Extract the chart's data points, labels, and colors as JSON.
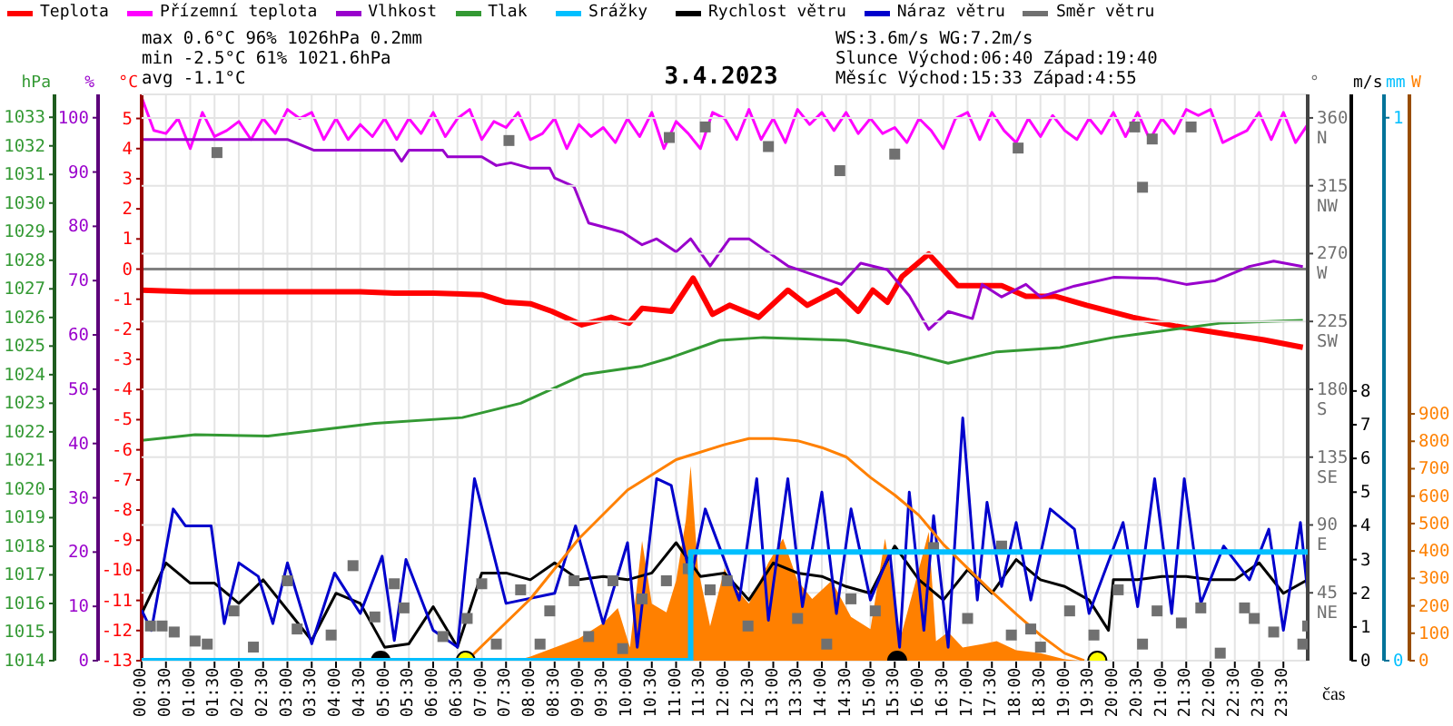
{
  "chart_data": [
    {
      "type": "line",
      "title": "3.4.2023",
      "xlabel": "čas",
      "ylabel": "°C",
      "y2label": "hPa",
      "y3label": "%",
      "annotations": [
        "max 0.6°C 96% 1026hPa 0.2mm",
        "min -2.5°C 61% 1021.6hPa",
        "avg -1.1°C",
        "WS:3.6m/s WG:7.2m/s",
        "Slunce Východ:06:40 Západ:19:40",
        "Měsíc Východ:15:33 Západ:4:55"
      ],
      "legend": "top",
      "grid": "x",
      "marker": "none",
      "xlim": [
        0,
        24
      ],
      "xticks": [
        {
          "value": 0,
          "label": "00:00"
        },
        {
          "value": 0.5,
          "label": "00:30"
        },
        {
          "value": 1,
          "label": "01:00"
        },
        {
          "value": 1.5,
          "label": "01:30"
        },
        {
          "value": 2,
          "label": "02:00"
        },
        {
          "value": 2.5,
          "label": "02:30"
        },
        {
          "value": 3,
          "label": "03:00"
        },
        {
          "value": 3.5,
          "label": "03:30"
        },
        {
          "value": 4,
          "label": "04:00"
        },
        {
          "value": 4.5,
          "label": "04:30"
        },
        {
          "value": 5,
          "label": "05:00"
        },
        {
          "value": 5.5,
          "label": "05:30"
        },
        {
          "value": 6,
          "label": "06:00"
        },
        {
          "value": 6.5,
          "label": "06:30"
        },
        {
          "value": 7,
          "label": "07:00"
        },
        {
          "value": 7.5,
          "label": "07:30"
        },
        {
          "value": 8,
          "label": "08:00"
        },
        {
          "value": 8.5,
          "label": "08:30"
        },
        {
          "value": 9,
          "label": "09:00"
        },
        {
          "value": 9.5,
          "label": "09:30"
        },
        {
          "value": 10,
          "label": "10:00"
        },
        {
          "value": 10.5,
          "label": "10:30"
        },
        {
          "value": 11,
          "label": "11:00"
        },
        {
          "value": 11.5,
          "label": "11:30"
        },
        {
          "value": 12,
          "label": "12:00"
        },
        {
          "value": 12.5,
          "label": "12:30"
        },
        {
          "value": 13,
          "label": "13:00"
        },
        {
          "value": 13.5,
          "label": "13:30"
        },
        {
          "value": 14,
          "label": "14:00"
        },
        {
          "value": 14.5,
          "label": "14:30"
        },
        {
          "value": 15,
          "label": "15:00"
        },
        {
          "value": 15.5,
          "label": "15:30"
        },
        {
          "value": 16,
          "label": "16:00"
        },
        {
          "value": 16.5,
          "label": "16:30"
        },
        {
          "value": 17,
          "label": "17:00"
        },
        {
          "value": 17.5,
          "label": "17:30"
        },
        {
          "value": 18,
          "label": "18:00"
        },
        {
          "value": 18.5,
          "label": "18:30"
        },
        {
          "value": 19,
          "label": "19:00"
        },
        {
          "value": 19.5,
          "label": "19:30"
        },
        {
          "value": 20,
          "label": "20:00"
        },
        {
          "value": 20.5,
          "label": "20:30"
        },
        {
          "value": 21,
          "label": "21:00"
        },
        {
          "value": 21.5,
          "label": "21:30"
        },
        {
          "value": 22,
          "label": "22:00"
        },
        {
          "value": 22.5,
          "label": "22:30"
        },
        {
          "value": 23,
          "label": "23:00"
        },
        {
          "value": 23.5,
          "label": "23:30"
        }
      ],
      "ylim": [
        -13,
        5.8
      ],
      "yticks": [
        -13,
        -12,
        -11,
        -10,
        -9,
        -8,
        -7,
        -6,
        -5,
        -4,
        -3,
        -2,
        -1,
        0,
        1,
        2,
        3,
        4,
        5
      ],
      "y2lim": [
        1014,
        1033.8
      ],
      "y2ticks": [
        1014,
        1015,
        1016,
        1017,
        1018,
        1019,
        1020,
        1021,
        1022,
        1023,
        1024,
        1025,
        1026,
        1027,
        1028,
        1029,
        1030,
        1031,
        1032,
        1033
      ],
      "y3lim": [
        0,
        104.3
      ],
      "y3ticks": [
        0,
        10,
        20,
        30,
        40,
        50,
        60,
        70,
        80,
        90,
        100
      ],
      "ref_lines": [
        {
          "axis": "y",
          "value": 0,
          "color": "#808080"
        }
      ],
      "series": [
        {
          "name": "Teplota",
          "color": "#ff0000",
          "x": [
            0,
            1,
            2,
            3,
            4,
            4.5,
            5.2,
            6,
            7,
            7.5,
            8,
            8.44,
            9.06,
            9.66,
            10.03,
            10.3,
            10.9,
            11.35,
            11.75,
            12.1,
            12.7,
            13.3,
            13.7,
            14.3,
            14.75,
            15.05,
            15.35,
            15.65,
            16.2,
            16.8,
            17.25,
            17.7,
            18.2,
            18.8,
            19.45,
            20.4,
            21.3,
            22.1,
            23.1,
            23.9
          ],
          "values": [
            -0.7,
            -0.75,
            -0.75,
            -0.75,
            -0.75,
            -0.75,
            -0.8,
            -0.8,
            -0.85,
            -1.1,
            -1.15,
            -1.4,
            -1.85,
            -1.6,
            -1.8,
            -1.3,
            -1.4,
            -0.3,
            -1.5,
            -1.2,
            -1.6,
            -0.7,
            -1.2,
            -0.7,
            -1.4,
            -0.7,
            -1.1,
            -0.25,
            0.5,
            -0.55,
            -0.55,
            -0.55,
            -0.9,
            -0.9,
            -1.2,
            -1.6,
            -1.9,
            -2.1,
            -2.35,
            -2.6
          ]
        },
        {
          "name": "Přízemní teplota",
          "color": "#ff00ff",
          "x": [
            0,
            0.25,
            0.5,
            0.75,
            1,
            1.25,
            1.5,
            1.75,
            2,
            2.25,
            2.5,
            2.75,
            3,
            3.25,
            3.5,
            3.75,
            4,
            4.25,
            4.5,
            4.75,
            5,
            5.25,
            5.5,
            5.75,
            6,
            6.25,
            6.5,
            6.75,
            7,
            7.25,
            7.5,
            7.75,
            8,
            8.25,
            8.5,
            8.75,
            9,
            9.25,
            9.5,
            9.75,
            10,
            10.25,
            10.5,
            10.75,
            11,
            11.25,
            11.5,
            11.75,
            12,
            12.25,
            12.5,
            12.75,
            13,
            13.25,
            13.5,
            13.75,
            14,
            14.25,
            14.5,
            14.75,
            15,
            15.25,
            15.5,
            15.75,
            16,
            16.25,
            16.5,
            16.75,
            17,
            17.25,
            17.5,
            17.75,
            18,
            18.25,
            18.5,
            18.75,
            19,
            19.25,
            19.5,
            19.75,
            20,
            20.25,
            20.5,
            20.75,
            21,
            21.25,
            21.5,
            21.75,
            22,
            22.25,
            22.5,
            22.75,
            23,
            23.25,
            23.5,
            23.75,
            24
          ],
          "values": [
            5.7,
            4.6,
            4.5,
            5.0,
            4.0,
            5.2,
            4.4,
            4.6,
            4.9,
            4.3,
            5.0,
            4.5,
            5.3,
            5.0,
            5.2,
            4.3,
            5.0,
            4.3,
            4.8,
            4.4,
            5.0,
            4.3,
            5.0,
            4.5,
            5.2,
            4.4,
            5.0,
            5.3,
            4.3,
            4.9,
            4.7,
            5.2,
            4.3,
            4.5,
            5.0,
            4.0,
            4.8,
            4.4,
            4.7,
            4.2,
            5.0,
            4.4,
            5.2,
            4.0,
            4.9,
            4.5,
            4.0,
            5.2,
            5.0,
            4.3,
            5.3,
            4.3,
            5.0,
            4.2,
            5.3,
            4.8,
            5.2,
            4.6,
            5.2,
            4.5,
            5.0,
            4.5,
            4.7,
            4.2,
            5.0,
            4.6,
            4.0,
            5.0,
            5.2,
            4.3,
            5.2,
            4.6,
            4.2,
            5.0,
            4.4,
            5.1,
            4.6,
            4.3,
            5.0,
            4.5,
            5.2,
            4.4,
            5.2,
            4.3,
            5.0,
            4.5,
            5.3,
            5.1,
            5.3,
            4.2,
            4.4,
            4.6,
            5.2,
            4.3,
            5.2,
            4.2,
            4.8
          ]
        },
        {
          "name": "Vlhkost",
          "color": "#9900cc",
          "axis": "y3",
          "x": [
            0,
            1,
            2,
            3,
            3.55,
            4.5,
            5.2,
            5.35,
            5.5,
            6.2,
            6.3,
            7.0,
            7.3,
            7.6,
            8.0,
            8.4,
            8.5,
            8.9,
            9.2,
            9.5,
            9.9,
            10.3,
            10.6,
            11.0,
            11.3,
            11.7,
            12.1,
            12.5,
            13.3,
            14.4,
            14.8,
            15.35,
            15.8,
            16.2,
            16.6,
            17.1,
            17.3,
            17.7,
            18.2,
            18.5,
            19.2,
            20.0,
            20.9,
            21.5,
            22.1,
            22.8,
            23.3,
            23.9
          ],
          "values": [
            96,
            96,
            96,
            96,
            94,
            94,
            94,
            92,
            94,
            94,
            92.8,
            92.8,
            91.2,
            91.7,
            90.7,
            90.7,
            88.9,
            87.3,
            80.6,
            79.9,
            78.9,
            76.6,
            77.7,
            75.3,
            77.7,
            72.7,
            77.7,
            77.7,
            72.7,
            69.3,
            73.2,
            72,
            67.2,
            61,
            64.3,
            63,
            69.3,
            67,
            69.3,
            67,
            69,
            70.6,
            70.4,
            69.3,
            70,
            72.6,
            73.6,
            72.6
          ]
        },
        {
          "name": "Tlak",
          "color": "#339933",
          "axis": "y2",
          "x": [
            0,
            1.1,
            2.6,
            4.8,
            6.6,
            7.8,
            9.1,
            10.3,
            10.9,
            11.9,
            12.8,
            14.5,
            15.8,
            16.6,
            17.6,
            18.9,
            20.0,
            21.3,
            22.2,
            23.9
          ],
          "values": [
            1021.7,
            1021.9,
            1021.85,
            1022.3,
            1022.5,
            1023.0,
            1024.0,
            1024.3,
            1024.6,
            1025.2,
            1025.3,
            1025.2,
            1024.75,
            1024.4,
            1024.8,
            1024.95,
            1025.3,
            1025.6,
            1025.8,
            1025.9
          ]
        }
      ]
    },
    {
      "type": "line",
      "ylabel": "°",
      "y2label": "m/s",
      "y3label": "W",
      "legend": "top",
      "grid": "y",
      "marker": "none",
      "tick_labels": "y",
      "xlim": [
        0,
        24
      ],
      "ylim": [
        0,
        375.6
      ],
      "yticks": [
        {
          "value": 45,
          "label": "45 NE"
        },
        {
          "value": 90,
          "label": "90 E"
        },
        {
          "value": 135,
          "label": "135 SE"
        },
        {
          "value": 180,
          "label": "180 S"
        },
        {
          "value": 225,
          "label": "225 SW"
        },
        {
          "value": 270,
          "label": "270 W"
        },
        {
          "value": 315,
          "label": "315 NW"
        },
        {
          "value": 360,
          "label": "360 N"
        }
      ],
      "y2lim": [
        0,
        16.8
      ],
      "y2ticks": [
        0,
        1,
        2,
        3,
        4,
        5,
        6,
        7,
        8
      ],
      "y3lim": [
        0,
        2065
      ],
      "y3ticks": [
        0,
        100,
        200,
        300,
        400,
        500,
        600,
        700,
        800,
        900
      ],
      "series": [
        {
          "name": "Rychlost větru",
          "color": "#000000",
          "axis": "y2",
          "x": [
            0,
            0.5,
            1,
            1.5,
            2,
            2.5,
            3,
            3.5,
            4,
            4.5,
            5,
            5.5,
            6,
            6.5,
            7,
            7.5,
            8,
            8.5,
            9,
            9.5,
            10,
            10.5,
            11,
            11.5,
            12,
            12.5,
            13,
            13.5,
            14,
            14.5,
            15,
            15.5,
            16,
            16.5,
            17,
            17.5,
            18,
            18.5,
            19,
            19.5,
            19.9,
            20,
            20.5,
            21,
            21.5,
            22,
            22.5,
            23,
            23.5,
            24
          ],
          "values": [
            1.4,
            2.9,
            2.3,
            2.3,
            1.7,
            2.4,
            1.5,
            0.6,
            2.0,
            1.7,
            0.4,
            0.5,
            1.6,
            0.4,
            2.6,
            2.6,
            2.4,
            2.9,
            2.4,
            2.5,
            2.4,
            2.6,
            3.5,
            2.5,
            2.6,
            1.8,
            2.9,
            2.6,
            2.5,
            2.2,
            2.0,
            3.4,
            2.4,
            1.8,
            2.7,
            2.0,
            3.0,
            2.4,
            2.2,
            1.8,
            0.9,
            2.4,
            2.4,
            2.5,
            2.5,
            2.4,
            2.4,
            2.9,
            2.0,
            2.4
          ]
        },
        {
          "name": "Náraz větru",
          "color": "#0000cc",
          "axis": "y2",
          "x": [
            0,
            0.2,
            0.65,
            0.9,
            1.43,
            1.7,
            2.0,
            2.4,
            2.7,
            3.0,
            3.5,
            3.97,
            4.5,
            4.95,
            5.2,
            5.44,
            6.0,
            6.5,
            6.85,
            7.5,
            8.5,
            8.93,
            9.5,
            10.0,
            10.2,
            10.6,
            10.9,
            11.3,
            11.6,
            12.3,
            12.66,
            12.9,
            13.3,
            13.6,
            14.0,
            14.3,
            14.6,
            15.0,
            15.4,
            15.6,
            15.8,
            16.1,
            16.3,
            16.6,
            16.9,
            17.2,
            17.4,
            17.7,
            18.0,
            18.3,
            18.7,
            19.2,
            19.5,
            20.2,
            20.5,
            20.85,
            21.2,
            21.46,
            21.8,
            22.27,
            22.8,
            23.2,
            23.5,
            23.85,
            24
          ],
          "values": [
            1.5,
            0.9,
            4.5,
            4.0,
            4.0,
            1.1,
            2.9,
            2.5,
            1.1,
            2.9,
            0.5,
            2.6,
            1.4,
            3.1,
            0.6,
            3.0,
            0.9,
            0.4,
            5.4,
            1.7,
            2.0,
            4.0,
            1.1,
            3.5,
            0.4,
            5.4,
            5.2,
            2.4,
            4.5,
            1.8,
            5.4,
            1.2,
            5.4,
            1.6,
            5.0,
            1.4,
            4.5,
            1.8,
            3.2,
            0.4,
            5.0,
            0.9,
            4.3,
            0.4,
            7.2,
            1.8,
            4.7,
            2.2,
            4.1,
            1.8,
            4.5,
            3.9,
            1.4,
            4.1,
            1.6,
            5.4,
            1.4,
            5.4,
            1.7,
            3.4,
            2.4,
            3.9,
            0.9,
            4.1,
            2.0
          ]
        },
        {
          "name": "Směr větru",
          "type": "scatter",
          "marker": "square",
          "color": "#707070",
          "x": [
            0.18,
            0.42,
            0.67,
            1.1,
            1.35,
            1.55,
            1.9,
            2.3,
            3.0,
            3.2,
            3.9,
            4.35,
            4.8,
            5.2,
            5.4,
            6.2,
            6.7,
            7.0,
            7.3,
            7.56,
            7.8,
            8.2,
            8.4,
            8.9,
            9.2,
            9.7,
            9.9,
            10.3,
            10.8,
            10.86,
            11.25,
            11.6,
            11.7,
            12.05,
            12.48,
            12.9,
            13.5,
            14.1,
            14.37,
            14.6,
            15.1,
            15.5,
            16.3,
            17.0,
            17.7,
            17.9,
            18.04,
            18.3,
            18.5,
            19.1,
            19.6,
            20.1,
            20.44,
            20.6,
            20.6,
            20.8,
            20.9,
            21.4,
            21.6,
            21.8,
            22.2,
            22.7,
            22.9,
            23.3,
            23.9,
            24.0
          ],
          "values": [
            23,
            23,
            19,
            13,
            11,
            337,
            33,
            9,
            53,
            21,
            17,
            63,
            29,
            51,
            35,
            16,
            28,
            51,
            11,
            345,
            47,
            11,
            33,
            53,
            16,
            53,
            8,
            41,
            53,
            347,
            61,
            354,
            47,
            53,
            23,
            341,
            28,
            11,
            325,
            41,
            33,
            336,
            75,
            28,
            76,
            17,
            340,
            21,
            9,
            33,
            17,
            47,
            354,
            314,
            11,
            346,
            33,
            25,
            354,
            35,
            5,
            35,
            28,
            19,
            11,
            23
          ]
        },
        {
          "type": "area",
          "color": "#ff8000",
          "axis": "y3",
          "x": [
            0,
            7.7,
            8.0,
            8.5,
            9.0,
            9.5,
            9.8,
            10.05,
            10.3,
            10.5,
            10.8,
            11.0,
            11.2,
            11.3,
            11.45,
            11.7,
            12.0,
            12.1,
            12.5,
            12.9,
            13.2,
            13.5,
            13.8,
            14.2,
            14.6,
            15.0,
            15.3,
            15.45,
            15.6,
            15.9,
            16.2,
            16.35,
            16.6,
            16.9,
            17.3,
            17.6,
            18.0,
            18.5,
            19.0,
            19.3,
            24
          ],
          "values": [
            0,
            0,
            15,
            48,
            81,
            137,
            192,
            48,
            437,
            208,
            176,
            291,
            512,
            710,
            337,
            126,
            337,
            291,
            208,
            357,
            445,
            291,
            225,
            291,
            160,
            115,
            445,
            291,
            71,
            269,
            470,
            71,
            104,
            48,
            60,
            71,
            38,
            27,
            5,
            0,
            0
          ]
        },
        {
          "type": "line",
          "color": "#ff8000",
          "axis": "y3",
          "x": [
            6.69,
            8,
            9,
            10,
            11,
            12,
            12.5,
            13,
            13.5,
            14,
            14.5,
            15,
            15.5,
            16,
            16.5,
            17,
            17.5,
            18,
            18.5,
            19,
            19.4
          ],
          "values": [
            0,
            225,
            445,
            622,
            733,
            788,
            810,
            810,
            802,
            777,
            743,
            668,
            604,
            530,
            424,
            337,
            251,
            170,
            93,
            27,
            0
          ]
        },
        {
          "type": "scatter",
          "marker": "circle",
          "color": "#ffff00",
          "axis": "y3",
          "x": [
            6.67,
            19.67
          ],
          "values": [
            0,
            0
          ]
        },
        {
          "type": "scatter",
          "marker": "circle",
          "color": "#000000",
          "axis": "y3",
          "x": [
            4.92,
            15.55
          ],
          "values": [
            0,
            0
          ]
        }
      ]
    },
    {
      "type": "step",
      "ylabel": "mm",
      "legend": "top",
      "tick_labels": "y",
      "marker": "none",
      "xlim": [
        0,
        24
      ],
      "ylim": [
        0,
        1.043
      ],
      "yticks": [
        0,
        1
      ],
      "series": [
        {
          "name": "Srážky",
          "color": "#00bfff",
          "x": [
            0,
            11.3,
            24
          ],
          "values": [
            0,
            0.2,
            0.2
          ]
        }
      ]
    }
  ]
}
